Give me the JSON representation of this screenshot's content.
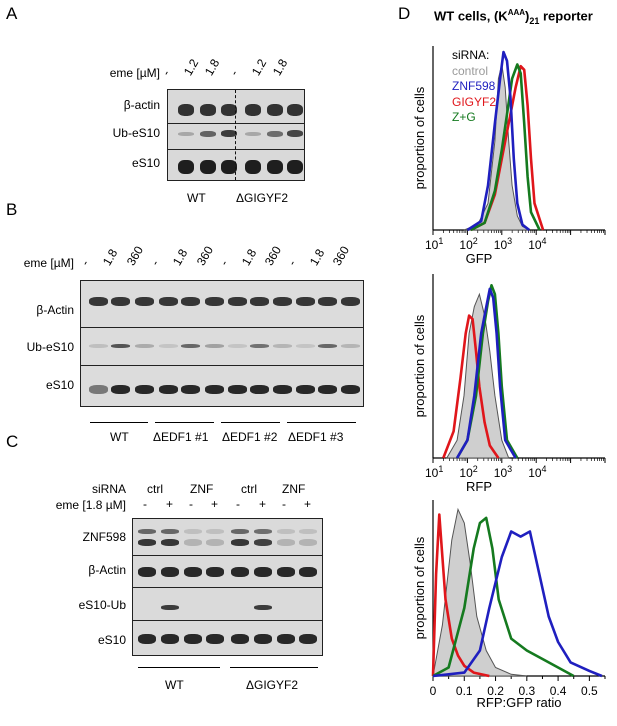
{
  "panelA": {
    "letter": "A",
    "eme_label": "eme [µM]",
    "lanes": [
      "-",
      "1.2",
      "1.8",
      "-",
      "1.2",
      "1.8"
    ],
    "rows": [
      "β-actin",
      "Ub-eS10",
      "eS10"
    ],
    "groups": [
      "WT",
      "ΔGIGYF2"
    ]
  },
  "panelB": {
    "letter": "B",
    "eme_label": "eme [µM]",
    "lanes": [
      "-",
      "1.8",
      "360",
      "-",
      "1.8",
      "360",
      "-",
      "1.8",
      "360",
      "-",
      "1.8",
      "360"
    ],
    "rows": [
      "β-Actin",
      "Ub-eS10",
      "eS10"
    ],
    "groups": [
      "WT",
      "ΔEDF1 #1",
      "ΔEDF1 #2",
      "ΔEDF1 #3"
    ]
  },
  "panelC": {
    "letter": "C",
    "sirna_label": "siRNA",
    "sirna": [
      "ctrl",
      "ZNF",
      "ctrl",
      "ZNF"
    ],
    "eme_label": "eme [1.8 µM]",
    "eme_signs": [
      "-",
      "+",
      "-",
      "+",
      "-",
      "+",
      "-",
      "+"
    ],
    "rows": [
      "ZNF598",
      "β-Actin",
      "eS10-Ub",
      "eS10"
    ],
    "groups": [
      "WT",
      "ΔGIGYF2"
    ]
  },
  "panelD": {
    "letter": "D",
    "title_prefix": "WT cells, (K",
    "title_sup": "AAA",
    "title_mid": ")",
    "title_sub": "21",
    "title_suffix": " reporter",
    "ylabel": "proportion of cells",
    "legend_title": "siRNA:",
    "legend": [
      {
        "name": "control",
        "color": "#9a9a9a"
      },
      {
        "name": "ZNF598",
        "color": "#1f1fbf"
      },
      {
        "name": "GIGYF2",
        "color": "#e0161b"
      },
      {
        "name": "Z+G",
        "color": "#157a1f"
      }
    ],
    "log_ticks": {
      "bases": [
        "10",
        "10",
        "10",
        "10",
        "10"
      ],
      "exps": [
        "1",
        "2",
        "3",
        "4",
        ""
      ]
    },
    "xlabel_gfp": "GFP",
    "xlabel_rfp": "RFP",
    "xlabel_ratio": "RFP:GFP ratio",
    "ratio_ticks": [
      "0",
      "0.1",
      "0.2",
      "0.3",
      "0.4",
      "0.5"
    ]
  },
  "chart_data": [
    {
      "type": "area",
      "title": "GFP",
      "xlabel": "GFP",
      "ylabel": "proportion of cells",
      "xscale": "log10",
      "xlim": [
        1,
        6
      ],
      "series": [
        {
          "name": "control",
          "x": [
            1.9,
            2.3,
            2.6,
            2.8,
            2.9,
            3.0,
            3.1,
            3.2,
            3.3,
            3.45,
            3.6,
            3.8
          ],
          "values": [
            0,
            0.03,
            0.15,
            0.5,
            0.85,
            0.93,
            0.8,
            0.5,
            0.25,
            0.08,
            0.02,
            0
          ]
        },
        {
          "name": "ZNF598",
          "x": [
            2.0,
            2.4,
            2.6,
            2.8,
            2.95,
            3.05,
            3.15,
            3.25,
            3.35,
            3.45,
            3.6,
            3.8
          ],
          "values": [
            0,
            0.05,
            0.25,
            0.6,
            0.85,
            1.0,
            0.95,
            0.75,
            0.4,
            0.15,
            0.03,
            0
          ]
        },
        {
          "name": "GIGYF2",
          "x": [
            2.1,
            2.5,
            2.8,
            3.0,
            3.2,
            3.4,
            3.55,
            3.65,
            3.75,
            3.85,
            3.95,
            4.2
          ],
          "values": [
            0,
            0.04,
            0.2,
            0.4,
            0.6,
            0.8,
            0.92,
            0.9,
            0.7,
            0.4,
            0.15,
            0
          ]
        },
        {
          "name": "Z+G",
          "x": [
            2.1,
            2.5,
            2.8,
            3.0,
            3.15,
            3.3,
            3.45,
            3.55,
            3.65,
            3.75,
            3.85,
            4.1
          ],
          "values": [
            0,
            0.04,
            0.22,
            0.45,
            0.65,
            0.85,
            0.93,
            0.88,
            0.6,
            0.3,
            0.1,
            0
          ]
        }
      ]
    },
    {
      "type": "area",
      "title": "RFP",
      "xlabel": "RFP",
      "ylabel": "proportion of cells",
      "xscale": "log10",
      "xlim": [
        1,
        6
      ],
      "series": [
        {
          "name": "control",
          "x": [
            1.4,
            1.7,
            1.9,
            2.05,
            2.2,
            2.35,
            2.5,
            2.65,
            2.8,
            3.0,
            3.2
          ],
          "values": [
            0,
            0.1,
            0.35,
            0.7,
            0.85,
            0.92,
            0.8,
            0.6,
            0.35,
            0.1,
            0
          ]
        },
        {
          "name": "ZNF598",
          "x": [
            1.7,
            2.0,
            2.2,
            2.4,
            2.55,
            2.65,
            2.75,
            2.85,
            2.95,
            3.1,
            3.4
          ],
          "values": [
            0,
            0.1,
            0.35,
            0.7,
            0.85,
            0.95,
            0.9,
            0.7,
            0.4,
            0.1,
            0
          ]
        },
        {
          "name": "GIGYF2",
          "x": [
            1.3,
            1.6,
            1.8,
            1.95,
            2.05,
            2.15,
            2.25,
            2.35,
            2.5,
            2.65,
            2.9
          ],
          "values": [
            0,
            0.15,
            0.45,
            0.7,
            0.8,
            0.78,
            0.6,
            0.4,
            0.2,
            0.07,
            0
          ]
        },
        {
          "name": "Z+G",
          "x": [
            1.7,
            2.0,
            2.25,
            2.45,
            2.6,
            2.7,
            2.8,
            2.9,
            3.0,
            3.15,
            3.45
          ],
          "values": [
            0,
            0.1,
            0.35,
            0.7,
            0.88,
            0.97,
            0.92,
            0.7,
            0.4,
            0.1,
            0
          ]
        }
      ]
    },
    {
      "type": "line",
      "title": "RFP:GFP ratio",
      "xlabel": "RFP:GFP ratio",
      "ylabel": "proportion of cells",
      "xlim": [
        0,
        0.55
      ],
      "series": [
        {
          "name": "control",
          "x": [
            0.0,
            0.03,
            0.06,
            0.08,
            0.1,
            0.12,
            0.14,
            0.17,
            0.2,
            0.25,
            0.3
          ],
          "values": [
            0,
            0.3,
            0.8,
            0.98,
            0.9,
            0.65,
            0.35,
            0.15,
            0.05,
            0.01,
            0
          ]
        },
        {
          "name": "ZNF598",
          "x": [
            0.0,
            0.1,
            0.15,
            0.18,
            0.22,
            0.25,
            0.28,
            0.31,
            0.34,
            0.37,
            0.4,
            0.44,
            0.5,
            0.54
          ],
          "values": [
            0,
            0.02,
            0.15,
            0.4,
            0.7,
            0.85,
            0.82,
            0.85,
            0.6,
            0.35,
            0.2,
            0.08,
            0.03,
            0
          ]
        },
        {
          "name": "GIGYF2",
          "x": [
            0.0,
            0.01,
            0.02,
            0.03,
            0.04,
            0.06,
            0.08,
            0.1,
            0.13,
            0.18
          ],
          "values": [
            0,
            0.6,
            0.95,
            0.7,
            0.45,
            0.22,
            0.12,
            0.06,
            0.02,
            0
          ]
        },
        {
          "name": "Z+G",
          "x": [
            0.0,
            0.05,
            0.1,
            0.13,
            0.15,
            0.17,
            0.19,
            0.21,
            0.25,
            0.3,
            0.35,
            0.4,
            0.45
          ],
          "values": [
            0,
            0.05,
            0.4,
            0.75,
            0.9,
            0.93,
            0.75,
            0.45,
            0.22,
            0.15,
            0.1,
            0.05,
            0
          ]
        }
      ]
    }
  ]
}
